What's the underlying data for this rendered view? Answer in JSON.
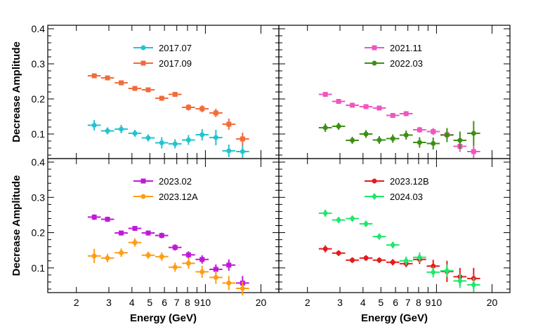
{
  "chart_data": [
    {
      "type": "scatter",
      "panel": "top-left",
      "xscale": "log",
      "xlim": [
        1.4,
        25
      ],
      "ylim": [
        0.03,
        0.41
      ],
      "ylabel": "Decrease Amplitude",
      "xlabel": "",
      "yticks": [
        0.1,
        0.2,
        0.3,
        0.4
      ],
      "ytick_labels": [
        "0.1",
        "0.2",
        "0.3",
        "0.4"
      ],
      "xticks": [],
      "xtick_labels": [],
      "legend_position": "top-center",
      "series": [
        {
          "name": "2017.07",
          "color": "#22c4d0",
          "marker": "circle",
          "x": [
            2.5,
            2.95,
            3.5,
            4.15,
            4.9,
            5.8,
            6.85,
            8.1,
            9.6,
            11.4,
            13.4,
            15.9
          ],
          "y": [
            0.125,
            0.109,
            0.114,
            0.102,
            0.089,
            0.075,
            0.072,
            0.083,
            0.098,
            0.09,
            0.052,
            0.05
          ],
          "yerr": [
            0.015,
            0.01,
            0.012,
            0.01,
            0.01,
            0.016,
            0.013,
            0.014,
            0.016,
            0.022,
            0.018,
            0.018
          ]
        },
        {
          "name": "2017.09",
          "color": "#f26b3a",
          "marker": "square",
          "x": [
            2.5,
            2.95,
            3.5,
            4.15,
            4.9,
            5.8,
            6.85,
            8.1,
            9.6,
            11.4,
            13.4,
            15.9
          ],
          "y": [
            0.266,
            0.26,
            0.246,
            0.23,
            0.226,
            0.202,
            0.213,
            0.176,
            0.172,
            0.16,
            0.128,
            0.086
          ],
          "yerr": [
            0.006,
            0.005,
            0.005,
            0.005,
            0.005,
            0.006,
            0.006,
            0.009,
            0.01,
            0.012,
            0.016,
            0.018
          ]
        }
      ]
    },
    {
      "type": "scatter",
      "panel": "top-right",
      "xscale": "log",
      "xlim": [
        1.4,
        25
      ],
      "ylim": [
        0.03,
        0.41
      ],
      "xlabel": "",
      "ylabel": "",
      "yticks": [],
      "ytick_labels": [],
      "xticks": [],
      "xtick_labels": [],
      "legend_position": "top-center",
      "series": [
        {
          "name": "2021.11",
          "color": "#f055c0",
          "marker": "square",
          "x": [
            2.5,
            2.95,
            3.5,
            4.15,
            4.9,
            5.8,
            6.85,
            8.1,
            9.6,
            11.4,
            13.4,
            15.9
          ],
          "y": [
            0.213,
            0.193,
            0.182,
            0.178,
            0.174,
            0.153,
            0.158,
            0.112,
            0.107,
            0.098,
            0.065,
            0.05
          ],
          "yerr": [
            0.006,
            0.005,
            0.005,
            0.005,
            0.005,
            0.006,
            0.006,
            0.008,
            0.01,
            0.012,
            0.016,
            0.018
          ]
        },
        {
          "name": "2022.03",
          "color": "#3c8f14",
          "marker": "circle",
          "x": [
            2.5,
            2.95,
            3.5,
            4.15,
            4.9,
            5.8,
            6.85,
            8.1,
            9.6,
            11.4,
            13.4,
            15.9
          ],
          "y": [
            0.118,
            0.122,
            0.082,
            0.1,
            0.083,
            0.087,
            0.097,
            0.076,
            0.073,
            0.097,
            0.082,
            0.102
          ],
          "yerr": [
            0.012,
            0.01,
            0.01,
            0.011,
            0.011,
            0.012,
            0.013,
            0.015,
            0.017,
            0.02,
            0.025,
            0.035
          ]
        }
      ]
    },
    {
      "type": "scatter",
      "panel": "bottom-left",
      "xscale": "log",
      "xlim": [
        1.4,
        25
      ],
      "ylim": [
        0.03,
        0.41
      ],
      "ylabel": "Decrease Amplitude",
      "xlabel": "Energy (GeV)",
      "yticks": [
        0.1,
        0.2,
        0.3,
        0.4
      ],
      "ytick_labels": [
        "0.1",
        "0.2",
        "0.3",
        "0.4"
      ],
      "xticks": [
        2,
        3,
        4,
        5,
        6,
        7,
        8,
        9,
        10,
        20
      ],
      "xtick_labels": [
        "2",
        "3",
        "4",
        "5",
        "6",
        "7",
        "8",
        "9",
        "10",
        "20"
      ],
      "legend_position": "top-center",
      "series": [
        {
          "name": "2023.02",
          "color": "#c018d8",
          "marker": "square",
          "x": [
            2.5,
            2.95,
            3.5,
            4.15,
            4.9,
            5.8,
            6.85,
            8.1,
            9.6,
            11.4,
            13.4,
            15.9
          ],
          "y": [
            0.244,
            0.238,
            0.199,
            0.212,
            0.199,
            0.192,
            0.158,
            0.137,
            0.124,
            0.096,
            0.108,
            0.057
          ],
          "yerr": [
            0.008,
            0.007,
            0.007,
            0.007,
            0.007,
            0.008,
            0.009,
            0.01,
            0.012,
            0.014,
            0.016,
            0.02
          ]
        },
        {
          "name": "2023.12A",
          "color": "#ff9d15",
          "marker": "circle",
          "x": [
            2.5,
            2.95,
            3.5,
            4.15,
            4.9,
            5.8,
            6.85,
            8.1,
            9.6,
            11.4,
            13.4,
            15.9
          ],
          "y": [
            0.134,
            0.128,
            0.143,
            0.172,
            0.136,
            0.132,
            0.102,
            0.113,
            0.089,
            0.073,
            0.057,
            0.042
          ],
          "yerr": [
            0.02,
            0.012,
            0.012,
            0.012,
            0.01,
            0.012,
            0.013,
            0.015,
            0.017,
            0.018,
            0.02,
            0.02
          ]
        }
      ]
    },
    {
      "type": "scatter",
      "panel": "bottom-right",
      "xscale": "log",
      "xlim": [
        1.4,
        25
      ],
      "ylim": [
        0.03,
        0.41
      ],
      "xlabel": "Energy (GeV)",
      "ylabel": "",
      "yticks": [],
      "ytick_labels": [],
      "xticks": [
        2,
        3,
        4,
        5,
        6,
        7,
        8,
        9,
        10,
        20
      ],
      "xtick_labels": [
        "2",
        "3",
        "4",
        "5",
        "6",
        "7",
        "8",
        "9",
        "10",
        "20"
      ],
      "legend_position": "top-center",
      "series": [
        {
          "name": "2023.12B",
          "color": "#e81919",
          "marker": "circle",
          "x": [
            2.5,
            2.95,
            3.5,
            4.15,
            4.9,
            5.8,
            6.85,
            8.1,
            9.6,
            11.4,
            13.4,
            15.9
          ],
          "y": [
            0.154,
            0.142,
            0.122,
            0.128,
            0.122,
            0.116,
            0.112,
            0.124,
            0.105,
            0.09,
            0.075,
            0.07
          ],
          "yerr": [
            0.01,
            0.008,
            0.008,
            0.008,
            0.008,
            0.009,
            0.01,
            0.013,
            0.018,
            0.03,
            0.025,
            0.03
          ]
        },
        {
          "name": "2024.03",
          "color": "#1ee86c",
          "marker": "diamond",
          "x": [
            2.5,
            2.95,
            3.5,
            4.15,
            4.9,
            5.8,
            6.85,
            8.1,
            9.6,
            11.4,
            13.4,
            15.9
          ],
          "y": [
            0.255,
            0.236,
            0.24,
            0.225,
            0.189,
            0.165,
            0.12,
            0.13,
            0.088,
            0.092,
            0.063,
            0.052
          ],
          "yerr": [
            0.01,
            0.008,
            0.008,
            0.008,
            0.008,
            0.009,
            0.012,
            0.014,
            0.015,
            0.018,
            0.02,
            0.02
          ]
        }
      ]
    }
  ]
}
